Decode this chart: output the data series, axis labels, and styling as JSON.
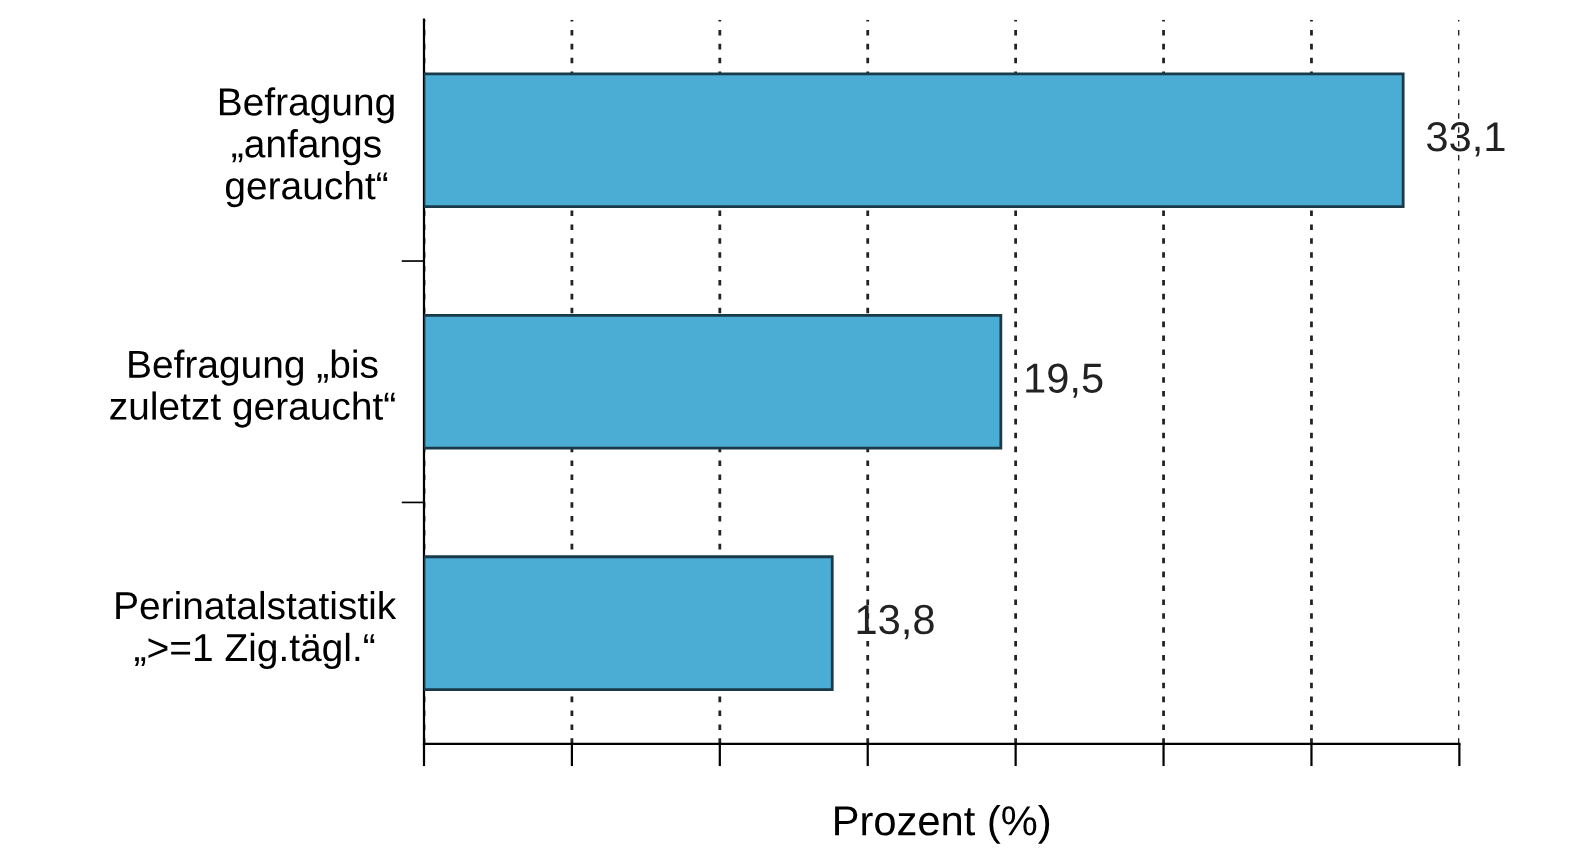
{
  "chart_data": {
    "type": "bar",
    "orientation": "horizontal",
    "xlabel": "Prozent (%)",
    "categories": [
      "Befragung\n„anfangs\ngeraucht“",
      "Befragung „bis\nzuletzt geraucht“",
      "Perinatalstatistik\n„>=1 Zig.tägl.“"
    ],
    "values": [
      33.1,
      19.5,
      13.8
    ],
    "value_labels": [
      "33,1",
      "19,5",
      "13,8"
    ],
    "color": "#4bacd4",
    "xlim": [
      0,
      35
    ],
    "xticks": [
      {
        "value": 0,
        "label": null
      },
      {
        "value": 5,
        "label": null
      },
      {
        "value": 10,
        "label": null
      },
      {
        "value": 15,
        "label": null
      },
      {
        "value": 20,
        "label": null
      },
      {
        "value": 25,
        "label": null
      },
      {
        "value": 30,
        "label": null
      },
      {
        "value": 35,
        "label": null
      }
    ],
    "grid": "x",
    "tick_labels": "y"
  }
}
